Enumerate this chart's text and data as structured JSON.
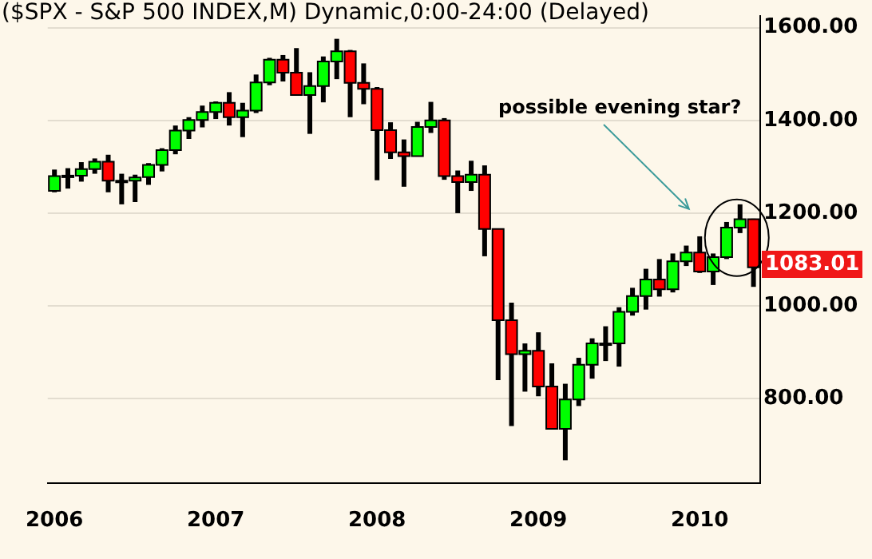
{
  "chart_data": {
    "type": "candlestick",
    "title": "($SPX - S&P 500 INDEX,M) Dynamic,0:00-24:00 (Delayed)",
    "categories": [
      "2006",
      null,
      null,
      null,
      null,
      null,
      null,
      null,
      null,
      null,
      null,
      null,
      "2007",
      null,
      null,
      null,
      null,
      null,
      null,
      null,
      null,
      null,
      null,
      null,
      "2008",
      null,
      null,
      null,
      null,
      null,
      null,
      null,
      null,
      null,
      null,
      null,
      "2009",
      null,
      null,
      null,
      null,
      null,
      null,
      null,
      null,
      null,
      null,
      null,
      "2010",
      null,
      null,
      null,
      null
    ],
    "ohlc": [
      [
        1248,
        1294,
        1245,
        1280
      ],
      [
        1280,
        1297,
        1253,
        1281
      ],
      [
        1281,
        1310,
        1268,
        1295
      ],
      [
        1295,
        1318,
        1285,
        1311
      ],
      [
        1311,
        1326,
        1245,
        1270
      ],
      [
        1270,
        1285,
        1219,
        1270
      ],
      [
        1270,
        1283,
        1224,
        1277
      ],
      [
        1278,
        1308,
        1261,
        1304
      ],
      [
        1304,
        1340,
        1290,
        1336
      ],
      [
        1336,
        1389,
        1327,
        1378
      ],
      [
        1378,
        1407,
        1360,
        1401
      ],
      [
        1401,
        1432,
        1385,
        1418
      ],
      [
        1418,
        1441,
        1403,
        1438
      ],
      [
        1438,
        1461,
        1389,
        1407
      ],
      [
        1407,
        1438,
        1364,
        1421
      ],
      [
        1421,
        1499,
        1416,
        1482
      ],
      [
        1482,
        1535,
        1476,
        1531
      ],
      [
        1531,
        1541,
        1484,
        1503
      ],
      [
        1503,
        1556,
        1454,
        1455
      ],
      [
        1455,
        1504,
        1371,
        1474
      ],
      [
        1474,
        1538,
        1439,
        1527
      ],
      [
        1527,
        1576,
        1489,
        1549
      ],
      [
        1549,
        1552,
        1407,
        1481
      ],
      [
        1481,
        1523,
        1435,
        1468
      ],
      [
        1468,
        1472,
        1271,
        1379
      ],
      [
        1379,
        1396,
        1317,
        1331
      ],
      [
        1331,
        1359,
        1257,
        1323
      ],
      [
        1323,
        1397,
        1323,
        1386
      ],
      [
        1386,
        1440,
        1373,
        1400
      ],
      [
        1400,
        1405,
        1272,
        1280
      ],
      [
        1280,
        1292,
        1200,
        1267
      ],
      [
        1267,
        1313,
        1248,
        1283
      ],
      [
        1283,
        1303,
        1107,
        1166
      ],
      [
        1166,
        1167,
        840,
        969
      ],
      [
        969,
        1007,
        741,
        896
      ],
      [
        896,
        919,
        815,
        903
      ],
      [
        903,
        943,
        805,
        826
      ],
      [
        826,
        876,
        735,
        735
      ],
      [
        735,
        832,
        667,
        798
      ],
      [
        798,
        888,
        784,
        873
      ],
      [
        873,
        930,
        843,
        919
      ],
      [
        919,
        956,
        881,
        919
      ],
      [
        919,
        997,
        869,
        987
      ],
      [
        987,
        1039,
        979,
        1021
      ],
      [
        1021,
        1080,
        992,
        1057
      ],
      [
        1057,
        1101,
        1020,
        1036
      ],
      [
        1036,
        1113,
        1029,
        1096
      ],
      [
        1096,
        1130,
        1086,
        1115
      ],
      [
        1115,
        1150,
        1071,
        1074
      ],
      [
        1074,
        1113,
        1045,
        1105
      ],
      [
        1105,
        1181,
        1101,
        1169
      ],
      [
        1169,
        1219,
        1157,
        1187
      ],
      [
        1187,
        1188,
        1041,
        1083
      ]
    ],
    "colors": [
      "#00ff00",
      "#00ff00",
      "#00ff00",
      "#00ff00",
      "#ff0000",
      "#00ff00",
      "#00ff00",
      "#00ff00",
      "#00ff00",
      "#00ff00",
      "#00ff00",
      "#00ff00",
      "#00ff00",
      "#ff0000",
      "#00ff00",
      "#00ff00",
      "#00ff00",
      "#ff0000",
      "#ff0000",
      "#00ff00",
      "#00ff00",
      "#00ff00",
      "#ff0000",
      "#ff0000",
      "#ff0000",
      "#ff0000",
      "#ff0000",
      "#00ff00",
      "#00ff00",
      "#ff0000",
      "#ff0000",
      "#00ff00",
      "#ff0000",
      "#ff0000",
      "#ff0000",
      "#00ff00",
      "#ff0000",
      "#ff0000",
      "#00ff00",
      "#00ff00",
      "#00ff00",
      "#00ff00",
      "#00ff00",
      "#00ff00",
      "#00ff00",
      "#ff0000",
      "#00ff00",
      "#00ff00",
      "#ff0000",
      "#00ff00",
      "#00ff00",
      "#00ff00",
      "#ff0000"
    ],
    "ylim": [
      618,
      1626
    ],
    "yticks": [
      {
        "value": 800,
        "label": "800.00"
      },
      {
        "value": 1000,
        "label": "1000.00"
      },
      {
        "value": 1200,
        "label": "1200.00"
      },
      {
        "value": 1400,
        "label": "1400.00"
      },
      {
        "value": 1600,
        "label": "1600.00"
      }
    ],
    "grid": true,
    "annotations": [
      "possible evening star?",
      "1083.01"
    ]
  }
}
